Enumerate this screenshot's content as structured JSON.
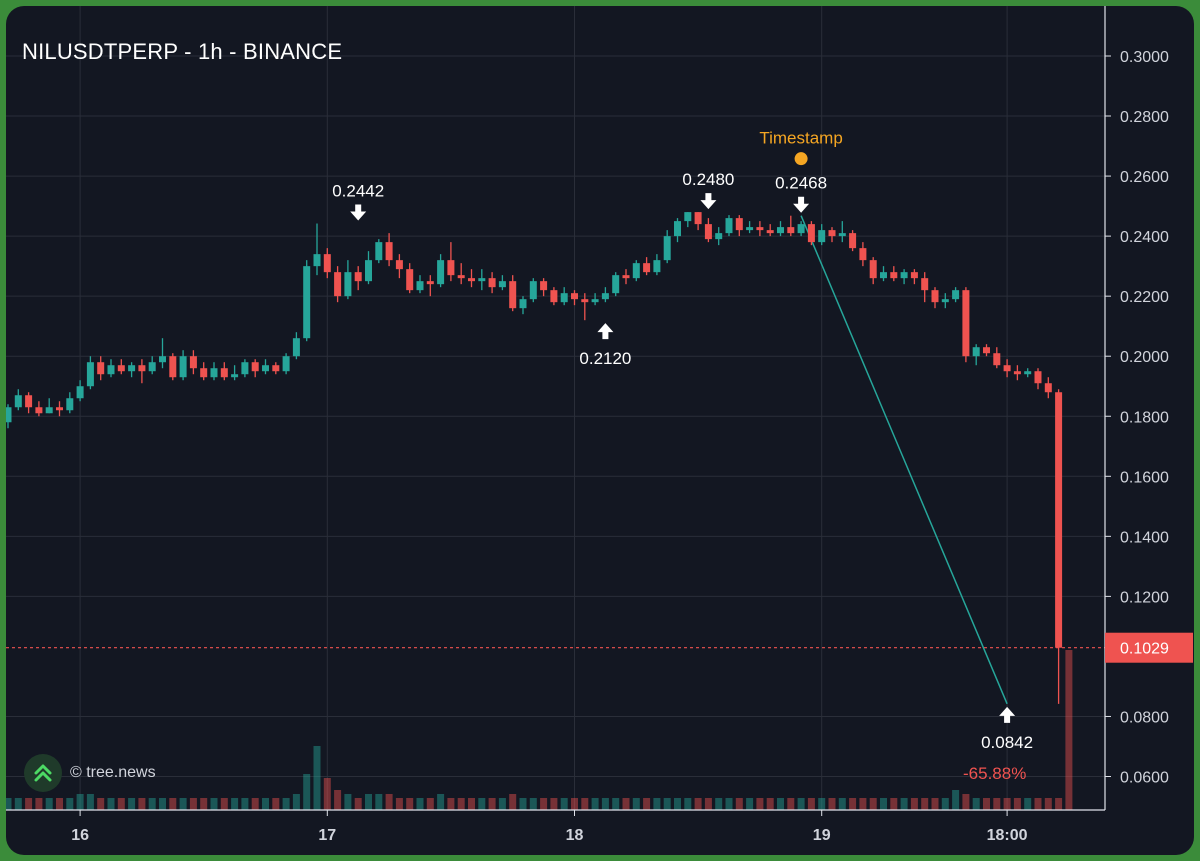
{
  "header": {
    "title": "NILUSDTPERP - 1h - BINANCE"
  },
  "watermark": {
    "text": "© tree.news",
    "icon": "double-chevron-up-icon"
  },
  "change_label": "-65.88%",
  "colors": {
    "up": "#26a69a",
    "down": "#ef5350",
    "bg": "#131722",
    "grid": "#2a2e39",
    "text": "#d1d4dc",
    "marker": "#f5a623",
    "frame": "#3b8c3a"
  },
  "chart_data": {
    "type": "candlestick",
    "title": "NILUSDTPERP - 1h - BINANCE",
    "interval": "1h",
    "y_axis": {
      "min": 0.045,
      "max": 0.31,
      "ticks": [
        "0.3000",
        "0.2800",
        "0.2600",
        "0.2400",
        "0.2200",
        "0.2000",
        "0.1800",
        "0.1600",
        "0.1400",
        "0.1200",
        "0.1029",
        "0.0800",
        "0.0600"
      ]
    },
    "x_axis": {
      "labels": [
        "16",
        "17",
        "18",
        "19",
        "18:00"
      ],
      "label_hours": [
        7,
        31,
        55,
        79,
        97
      ]
    },
    "last_price": "0.1029",
    "annotations": [
      {
        "label": "0.2442",
        "hour": 34,
        "price": 0.2442,
        "kind": "high"
      },
      {
        "label": "0.2120",
        "hour": 58,
        "price": 0.212,
        "kind": "low"
      },
      {
        "label": "0.2480",
        "hour": 68,
        "price": 0.248,
        "kind": "high"
      },
      {
        "label": "0.2468",
        "hour": 77,
        "price": 0.2468,
        "kind": "high"
      },
      {
        "label": "0.0842",
        "hour": 97,
        "price": 0.0842,
        "kind": "low"
      }
    ],
    "timestamp_marker": {
      "label": "Timestamp",
      "hour": 77,
      "price": 0.2658
    },
    "trend_line": {
      "from": {
        "hour": 77,
        "price": 0.2468
      },
      "to": {
        "hour": 97,
        "price": 0.0842
      }
    },
    "candles": [
      [
        0.178,
        0.183,
        0.184,
        0.176
      ],
      [
        0.183,
        0.187,
        0.189,
        0.182
      ],
      [
        0.187,
        0.183,
        0.188,
        0.181
      ],
      [
        0.183,
        0.181,
        0.185,
        0.18
      ],
      [
        0.181,
        0.183,
        0.186,
        0.181
      ],
      [
        0.183,
        0.182,
        0.185,
        0.18
      ],
      [
        0.182,
        0.186,
        0.188,
        0.181
      ],
      [
        0.186,
        0.19,
        0.192,
        0.185
      ],
      [
        0.19,
        0.198,
        0.2,
        0.189
      ],
      [
        0.198,
        0.194,
        0.2,
        0.192
      ],
      [
        0.194,
        0.197,
        0.199,
        0.193
      ],
      [
        0.197,
        0.195,
        0.199,
        0.194
      ],
      [
        0.195,
        0.197,
        0.198,
        0.193
      ],
      [
        0.197,
        0.195,
        0.199,
        0.191
      ],
      [
        0.195,
        0.198,
        0.2,
        0.194
      ],
      [
        0.198,
        0.2,
        0.206,
        0.196
      ],
      [
        0.2,
        0.193,
        0.201,
        0.192
      ],
      [
        0.193,
        0.2,
        0.202,
        0.192
      ],
      [
        0.2,
        0.196,
        0.202,
        0.194
      ],
      [
        0.196,
        0.193,
        0.198,
        0.192
      ],
      [
        0.193,
        0.196,
        0.198,
        0.192
      ],
      [
        0.196,
        0.193,
        0.198,
        0.192
      ],
      [
        0.193,
        0.194,
        0.197,
        0.192
      ],
      [
        0.194,
        0.198,
        0.199,
        0.193
      ],
      [
        0.198,
        0.195,
        0.199,
        0.193
      ],
      [
        0.195,
        0.197,
        0.199,
        0.194
      ],
      [
        0.197,
        0.195,
        0.198,
        0.194
      ],
      [
        0.195,
        0.2,
        0.201,
        0.194
      ],
      [
        0.2,
        0.206,
        0.208,
        0.199
      ],
      [
        0.206,
        0.23,
        0.232,
        0.205
      ],
      [
        0.23,
        0.234,
        0.2442,
        0.227
      ],
      [
        0.234,
        0.228,
        0.236,
        0.226
      ],
      [
        0.228,
        0.22,
        0.23,
        0.218
      ],
      [
        0.22,
        0.228,
        0.232,
        0.219
      ],
      [
        0.228,
        0.225,
        0.23,
        0.222
      ],
      [
        0.225,
        0.232,
        0.235,
        0.224
      ],
      [
        0.232,
        0.238,
        0.239,
        0.231
      ],
      [
        0.238,
        0.232,
        0.241,
        0.23
      ],
      [
        0.232,
        0.229,
        0.234,
        0.226
      ],
      [
        0.229,
        0.222,
        0.231,
        0.221
      ],
      [
        0.222,
        0.225,
        0.227,
        0.221
      ],
      [
        0.225,
        0.224,
        0.227,
        0.22
      ],
      [
        0.224,
        0.232,
        0.234,
        0.223
      ],
      [
        0.232,
        0.227,
        0.238,
        0.225
      ],
      [
        0.227,
        0.226,
        0.231,
        0.224
      ],
      [
        0.226,
        0.225,
        0.229,
        0.223
      ],
      [
        0.225,
        0.226,
        0.229,
        0.222
      ],
      [
        0.226,
        0.223,
        0.228,
        0.221
      ],
      [
        0.223,
        0.225,
        0.227,
        0.222
      ],
      [
        0.225,
        0.216,
        0.227,
        0.215
      ],
      [
        0.216,
        0.219,
        0.22,
        0.214
      ],
      [
        0.219,
        0.225,
        0.226,
        0.218
      ],
      [
        0.225,
        0.222,
        0.226,
        0.22
      ],
      [
        0.222,
        0.218,
        0.223,
        0.217
      ],
      [
        0.218,
        0.221,
        0.223,
        0.217
      ],
      [
        0.221,
        0.219,
        0.222,
        0.217
      ],
      [
        0.219,
        0.218,
        0.221,
        0.212
      ],
      [
        0.218,
        0.219,
        0.221,
        0.217
      ],
      [
        0.219,
        0.221,
        0.223,
        0.218
      ],
      [
        0.221,
        0.227,
        0.228,
        0.22
      ],
      [
        0.227,
        0.226,
        0.229,
        0.224
      ],
      [
        0.226,
        0.231,
        0.232,
        0.225
      ],
      [
        0.231,
        0.228,
        0.233,
        0.227
      ],
      [
        0.228,
        0.232,
        0.234,
        0.227
      ],
      [
        0.232,
        0.24,
        0.242,
        0.231
      ],
      [
        0.24,
        0.245,
        0.246,
        0.238
      ],
      [
        0.245,
        0.248,
        0.248,
        0.243
      ],
      [
        0.248,
        0.244,
        0.248,
        0.242
      ],
      [
        0.244,
        0.239,
        0.246,
        0.238
      ],
      [
        0.239,
        0.241,
        0.243,
        0.237
      ],
      [
        0.241,
        0.246,
        0.247,
        0.24
      ],
      [
        0.246,
        0.242,
        0.247,
        0.24
      ],
      [
        0.242,
        0.243,
        0.245,
        0.241
      ],
      [
        0.243,
        0.242,
        0.245,
        0.24
      ],
      [
        0.242,
        0.241,
        0.244,
        0.24
      ],
      [
        0.241,
        0.243,
        0.245,
        0.24
      ],
      [
        0.243,
        0.241,
        0.2468,
        0.24
      ],
      [
        0.241,
        0.244,
        0.245,
        0.24
      ],
      [
        0.244,
        0.238,
        0.245,
        0.237
      ],
      [
        0.238,
        0.242,
        0.244,
        0.237
      ],
      [
        0.242,
        0.24,
        0.243,
        0.238
      ],
      [
        0.24,
        0.241,
        0.245,
        0.238
      ],
      [
        0.241,
        0.236,
        0.242,
        0.235
      ],
      [
        0.236,
        0.232,
        0.238,
        0.23
      ],
      [
        0.232,
        0.226,
        0.233,
        0.224
      ],
      [
        0.226,
        0.228,
        0.23,
        0.225
      ],
      [
        0.228,
        0.226,
        0.23,
        0.225
      ],
      [
        0.226,
        0.228,
        0.229,
        0.224
      ],
      [
        0.228,
        0.226,
        0.229,
        0.224
      ],
      [
        0.226,
        0.222,
        0.228,
        0.218
      ],
      [
        0.222,
        0.218,
        0.223,
        0.216
      ],
      [
        0.218,
        0.219,
        0.221,
        0.216
      ],
      [
        0.219,
        0.222,
        0.223,
        0.218
      ],
      [
        0.222,
        0.2,
        0.223,
        0.198
      ],
      [
        0.2,
        0.203,
        0.204,
        0.197
      ],
      [
        0.203,
        0.201,
        0.204,
        0.2
      ],
      [
        0.201,
        0.197,
        0.203,
        0.196
      ],
      [
        0.197,
        0.195,
        0.199,
        0.193
      ],
      [
        0.195,
        0.194,
        0.197,
        0.192
      ],
      [
        0.194,
        0.195,
        0.196,
        0.193
      ],
      [
        0.195,
        0.191,
        0.196,
        0.189
      ],
      [
        0.191,
        0.188,
        0.193,
        0.186
      ],
      [
        0.188,
        0.1029,
        0.189,
        0.0842
      ]
    ],
    "volume": [
      3,
      3,
      3,
      3,
      3,
      3,
      3,
      4,
      4,
      3,
      3,
      3,
      3,
      3,
      3,
      3,
      3,
      3,
      3,
      3,
      3,
      3,
      3,
      3,
      3,
      3,
      3,
      3,
      4,
      9,
      16,
      8,
      5,
      4,
      3,
      4,
      4,
      4,
      3,
      3,
      3,
      3,
      4,
      3,
      3,
      3,
      3,
      3,
      3,
      4,
      3,
      3,
      3,
      3,
      3,
      3,
      3,
      3,
      3,
      3,
      3,
      3,
      3,
      3,
      3,
      3,
      3,
      3,
      3,
      3,
      3,
      3,
      3,
      3,
      3,
      3,
      3,
      3,
      3,
      3,
      3,
      3,
      3,
      3,
      3,
      3,
      3,
      3,
      3,
      3,
      3,
      3,
      5,
      4,
      3,
      3,
      3,
      3,
      3,
      3,
      3,
      3,
      3,
      40
    ]
  }
}
